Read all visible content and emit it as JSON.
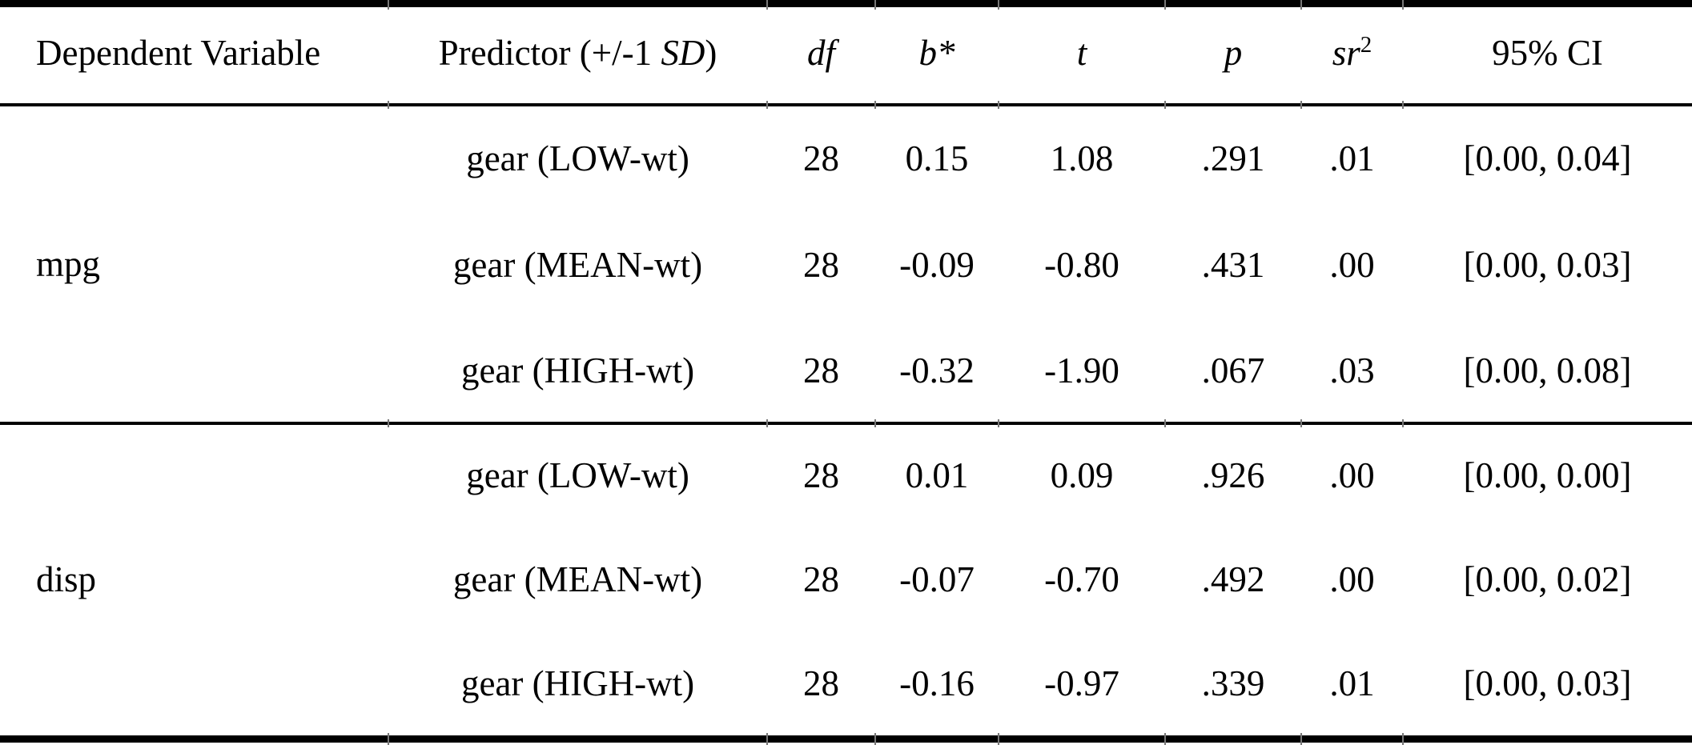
{
  "page": {
    "background": "#ffffff",
    "text_color": "#000000",
    "rule_color": "#000000",
    "tick_color": "#777777"
  },
  "table": {
    "header": {
      "dependent_variable": "Dependent Variable",
      "predictor_prefix": "Predictor (+/-1 ",
      "predictor_italic": "SD",
      "predictor_suffix": ")",
      "df": "df",
      "b_star": "b*",
      "t": "t",
      "p": "p",
      "sr_base": "sr",
      "sr_sup": "2",
      "ci": "95% CI"
    },
    "groups": [
      {
        "dependent_variable": "mpg",
        "rows": [
          {
            "predictor": "gear (LOW-wt)",
            "df": "28",
            "b_star": "0.15",
            "t": "1.08",
            "p": ".291",
            "sr2": ".01",
            "ci": "[0.00, 0.04]"
          },
          {
            "predictor": "gear (MEAN-wt)",
            "df": "28",
            "b_star": "-0.09",
            "t": "-0.80",
            "p": ".431",
            "sr2": ".00",
            "ci": "[0.00, 0.03]"
          },
          {
            "predictor": "gear (HIGH-wt)",
            "df": "28",
            "b_star": "-0.32",
            "t": "-1.90",
            "p": ".067",
            "sr2": ".03",
            "ci": "[0.00, 0.08]"
          }
        ]
      },
      {
        "dependent_variable": "disp",
        "rows": [
          {
            "predictor": "gear (LOW-wt)",
            "df": "28",
            "b_star": "0.01",
            "t": "0.09",
            "p": ".926",
            "sr2": ".00",
            "ci": "[0.00, 0.00]"
          },
          {
            "predictor": "gear (MEAN-wt)",
            "df": "28",
            "b_star": "-0.07",
            "t": "-0.70",
            "p": ".492",
            "sr2": ".00",
            "ci": "[0.00, 0.02]"
          },
          {
            "predictor": "gear (HIGH-wt)",
            "df": "28",
            "b_star": "-0.16",
            "t": "-0.97",
            "p": ".339",
            "sr2": ".01",
            "ci": "[0.00, 0.03]"
          }
        ]
      }
    ]
  }
}
